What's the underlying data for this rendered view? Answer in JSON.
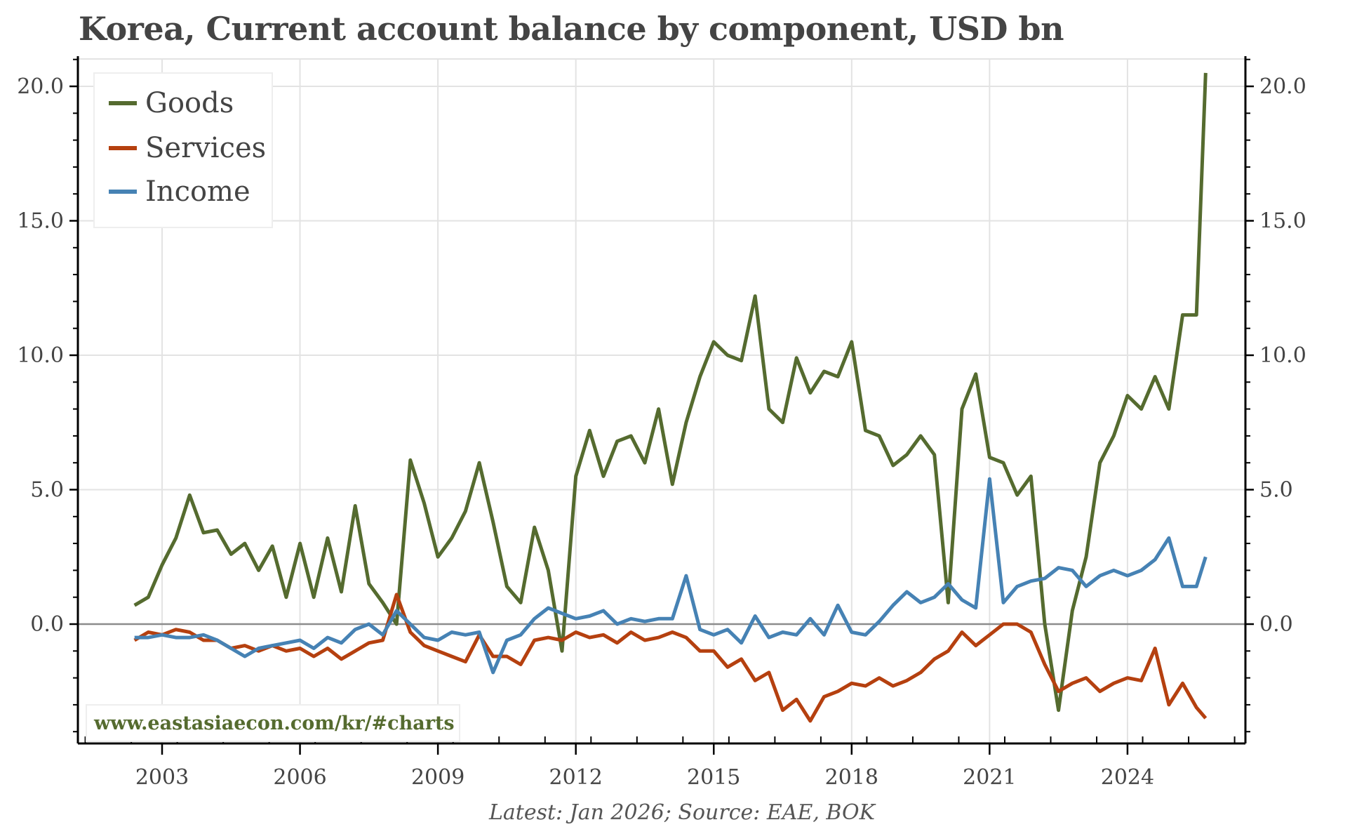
{
  "title": "Korea, Current account balance by component, USD bn",
  "legend": {
    "items": [
      {
        "label": "Goods",
        "color": "#556b2f"
      },
      {
        "label": "Services",
        "color": "#b5400f"
      },
      {
        "label": "Income",
        "color": "#4682b4"
      }
    ]
  },
  "watermark": "www.eastasiaecon.com/kr/#charts",
  "source": "Latest: Jan 2026; Source: EAE, BOK",
  "axes": {
    "y_ticks": [
      "20.0",
      "15.0",
      "10.0",
      "5.0",
      "0.0"
    ],
    "x_ticks": [
      "2003",
      "2006",
      "2009",
      "2012",
      "2015",
      "2018",
      "2021",
      "2024"
    ]
  },
  "chart_data": {
    "type": "line",
    "title": "Korea, Current account balance by component, USD bn",
    "xlabel": "",
    "ylabel": "USD bn",
    "ylim": [
      -4.4,
      21.0
    ],
    "xlim": [
      2000.8,
      2026.4
    ],
    "grid": true,
    "legend_position": "upper left",
    "y_ticks": [
      0,
      5,
      10,
      15,
      20
    ],
    "x_ticks": [
      2003,
      2006,
      2009,
      2012,
      2015,
      2018,
      2021,
      2024
    ],
    "annotations": [
      "www.eastasiaecon.com/kr/#charts",
      "Latest: Jan 2026; Source: EAE, BOK"
    ],
    "x": [
      2002.4,
      2002.7,
      2003.0,
      2003.3,
      2003.6,
      2003.9,
      2004.2,
      2004.5,
      2004.8,
      2005.1,
      2005.4,
      2005.7,
      2006.0,
      2006.3,
      2006.6,
      2006.9,
      2007.2,
      2007.5,
      2007.8,
      2008.1,
      2008.4,
      2008.7,
      2009.0,
      2009.3,
      2009.6,
      2009.9,
      2010.2,
      2010.5,
      2010.8,
      2011.1,
      2011.4,
      2011.7,
      2012.0,
      2012.3,
      2012.6,
      2012.9,
      2013.2,
      2013.5,
      2013.8,
      2014.1,
      2014.4,
      2014.7,
      2015.0,
      2015.3,
      2015.6,
      2015.9,
      2016.2,
      2016.5,
      2016.8,
      2017.1,
      2017.4,
      2017.7,
      2018.0,
      2018.3,
      2018.6,
      2018.9,
      2019.2,
      2019.5,
      2019.8,
      2020.1,
      2020.4,
      2020.7,
      2021.0,
      2021.3,
      2021.6,
      2021.9,
      2022.2,
      2022.5,
      2022.8,
      2023.1,
      2023.4,
      2023.7,
      2024.0,
      2024.3,
      2024.6,
      2024.9,
      2025.2,
      2025.5,
      2025.7
    ],
    "series": [
      {
        "name": "Goods",
        "color": "#556b2f",
        "values": [
          0.7,
          1.0,
          2.2,
          3.2,
          4.8,
          3.4,
          3.5,
          2.6,
          3.0,
          2.0,
          2.9,
          1.0,
          3.0,
          1.0,
          3.2,
          1.2,
          4.4,
          1.5,
          0.8,
          0.0,
          6.1,
          4.5,
          2.5,
          3.2,
          4.2,
          6.0,
          3.8,
          1.4,
          0.8,
          3.6,
          2.0,
          -1.0,
          5.5,
          7.2,
          5.5,
          6.8,
          7.0,
          6.0,
          8.0,
          5.2,
          7.5,
          9.2,
          10.5,
          10.0,
          9.8,
          12.2,
          8.0,
          7.5,
          9.9,
          8.6,
          9.4,
          9.2,
          10.5,
          7.2,
          7.0,
          5.9,
          6.3,
          7.0,
          6.3,
          0.8,
          8.0,
          9.3,
          6.2,
          6.0,
          4.8,
          5.5,
          0.0,
          -3.2,
          0.5,
          2.5,
          6.0,
          7.0,
          8.5,
          8.0,
          9.2,
          8.0,
          11.5,
          11.5,
          20.5
        ]
      },
      {
        "name": "Services",
        "color": "#b5400f",
        "values": [
          -0.6,
          -0.3,
          -0.4,
          -0.2,
          -0.3,
          -0.6,
          -0.6,
          -0.9,
          -0.8,
          -1.0,
          -0.8,
          -1.0,
          -0.9,
          -1.2,
          -0.9,
          -1.3,
          -1.0,
          -0.7,
          -0.6,
          1.1,
          -0.3,
          -0.8,
          -1.0,
          -1.2,
          -1.4,
          -0.4,
          -1.2,
          -1.2,
          -1.5,
          -0.6,
          -0.5,
          -0.6,
          -0.3,
          -0.5,
          -0.4,
          -0.7,
          -0.3,
          -0.6,
          -0.5,
          -0.3,
          -0.5,
          -1.0,
          -1.0,
          -1.6,
          -1.3,
          -2.1,
          -1.8,
          -3.2,
          -2.8,
          -3.6,
          -2.7,
          -2.5,
          -2.2,
          -2.3,
          -2.0,
          -2.3,
          -2.1,
          -1.8,
          -1.3,
          -1.0,
          -0.3,
          -0.8,
          -0.4,
          0.0,
          0.0,
          -0.3,
          -1.5,
          -2.5,
          -2.2,
          -2.0,
          -2.5,
          -2.2,
          -2.0,
          -2.1,
          -0.9,
          -3.0,
          -2.2,
          -3.1,
          -3.5
        ]
      },
      {
        "name": "Income",
        "color": "#4682b4",
        "values": [
          -0.5,
          -0.5,
          -0.4,
          -0.5,
          -0.5,
          -0.4,
          -0.6,
          -0.9,
          -1.2,
          -0.9,
          -0.8,
          -0.7,
          -0.6,
          -0.9,
          -0.5,
          -0.7,
          -0.2,
          0.0,
          -0.4,
          0.5,
          0.0,
          -0.5,
          -0.6,
          -0.3,
          -0.4,
          -0.3,
          -1.8,
          -0.6,
          -0.4,
          0.2,
          0.6,
          0.4,
          0.2,
          0.3,
          0.5,
          0.0,
          0.2,
          0.1,
          0.2,
          0.2,
          1.8,
          -0.2,
          -0.4,
          -0.2,
          -0.7,
          0.3,
          -0.5,
          -0.3,
          -0.4,
          0.2,
          -0.4,
          0.7,
          -0.3,
          -0.4,
          0.1,
          0.7,
          1.2,
          0.8,
          1.0,
          1.5,
          0.9,
          0.6,
          5.4,
          0.8,
          1.4,
          1.6,
          1.7,
          2.1,
          2.0,
          1.4,
          1.8,
          2.0,
          1.8,
          2.0,
          2.4,
          3.2,
          1.4,
          1.4,
          2.5
        ]
      }
    ]
  }
}
